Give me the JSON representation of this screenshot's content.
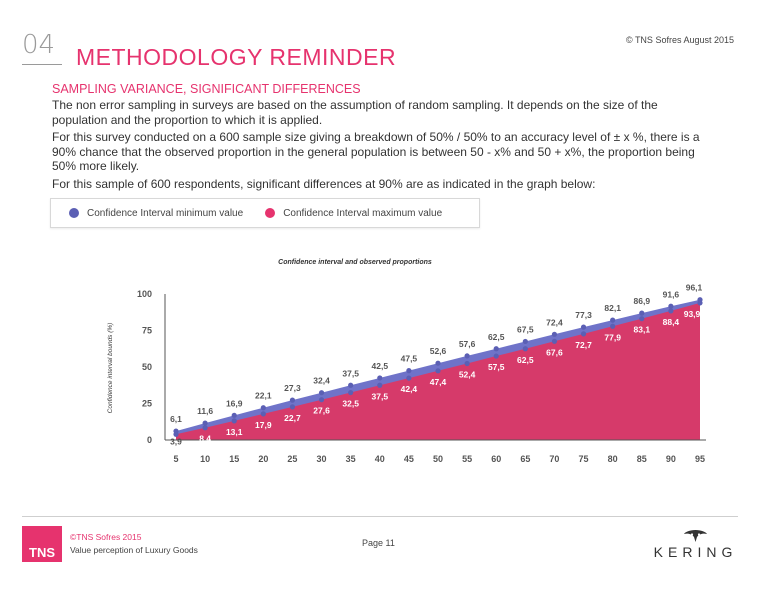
{
  "header": {
    "section_number": "04",
    "title": "METHODOLOGY REMINDER",
    "copyright": "© TNS Sofres August 2015"
  },
  "content": {
    "subtitle": "SAMPLING VARIANCE, SIGNIFICANT DIFFERENCES",
    "paragraphs": [
      "The non error sampling in surveys are based on the assumption of random sampling. It depends on the size of the population and the proportion to which it is applied.",
      "For this survey conducted on a 600 sample size giving a breakdown of 50% / 50% to an accuracy level of ± x %, there is a 90% chance that the observed proportion in the general population is between 50 - x% and 50 + x%, the proportion being 50% more likely.",
      "For this sample of 600 respondents, significant differences at 90% are as indicated in the graph below:"
    ]
  },
  "legend": {
    "min_label": "Confidence Interval minimum value",
    "max_label": "Confidence Interval maximum value"
  },
  "colors": {
    "accent": "#e6336e",
    "min_series": "#5b5fb4",
    "max_series": "#e6336e",
    "max_fill": "#d63a6a",
    "band_fill": "#6f73c9"
  },
  "chart_data": {
    "type": "area",
    "title": "Confidence interval and observed proportions",
    "ylabel": "Confidence interval bounds (%)",
    "xlabel": "",
    "x": [
      5,
      10,
      15,
      20,
      25,
      30,
      35,
      40,
      45,
      50,
      55,
      60,
      65,
      70,
      75,
      80,
      85,
      90,
      95
    ],
    "ylim": [
      0,
      100
    ],
    "yticks": [
      0,
      25,
      50,
      75,
      100
    ],
    "series": [
      {
        "name": "Confidence Interval minimum value",
        "values": [
          3.9,
          8.4,
          13.1,
          17.9,
          22.7,
          27.6,
          32.5,
          37.5,
          42.4,
          47.4,
          52.4,
          57.5,
          62.5,
          67.6,
          72.7,
          77.9,
          83.1,
          88.4,
          93.9
        ],
        "labels": [
          "3,9",
          "8,4",
          "13,1",
          "17,9",
          "22,7",
          "27,6",
          "32,5",
          "37,5",
          "42,4",
          "47,4",
          "52,4",
          "57,5",
          "62,5",
          "67,6",
          "72,7",
          "77,9",
          "83,1",
          "88,4",
          "93,9"
        ]
      },
      {
        "name": "Confidence Interval maximum value",
        "values": [
          6.1,
          11.6,
          16.9,
          22.1,
          27.3,
          32.4,
          37.5,
          42.5,
          47.5,
          52.6,
          57.6,
          62.5,
          67.5,
          72.4,
          77.3,
          82.1,
          86.9,
          91.6,
          96.1
        ],
        "labels": [
          "6,1",
          "11,6",
          "16,9",
          "22,1",
          "27,3",
          "32,4",
          "37,5",
          "42,5",
          "47,5",
          "52,6",
          "57,6",
          "62,5",
          "67,5",
          "72,4",
          "77,3",
          "82,1",
          "86,9",
          "91,6",
          "96,1"
        ]
      }
    ],
    "grid": false,
    "legend_position": "top"
  },
  "footer": {
    "tns_logo": "TNS",
    "brand": "©TNS Sofres 2015",
    "study": "Value perception of Luxury Goods",
    "page": "Page 11",
    "client_logo": "KERING"
  }
}
